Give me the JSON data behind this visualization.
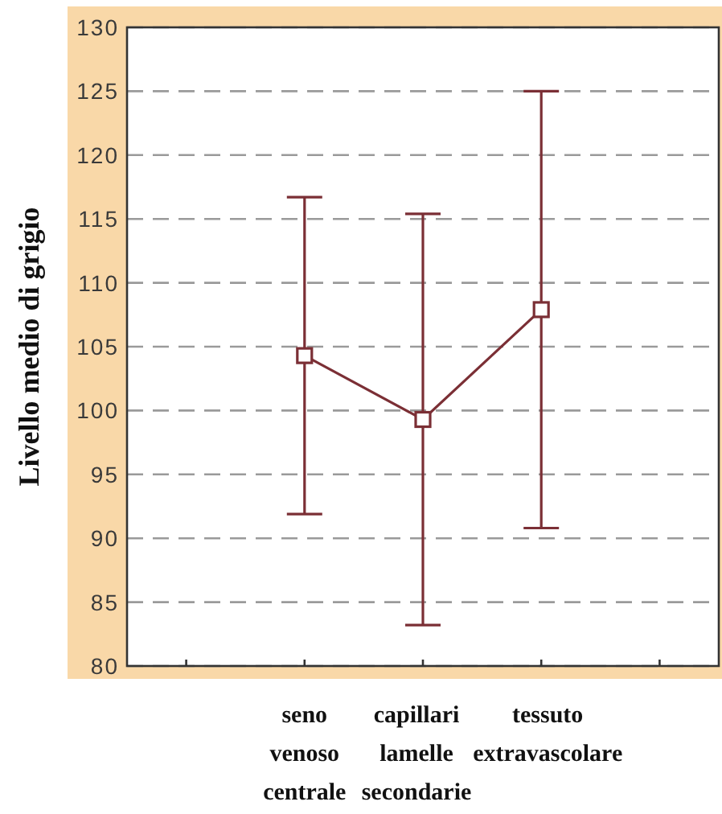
{
  "chart_data": {
    "type": "line",
    "ylabel": "Livello medio di grigio",
    "categories": [
      null,
      "seno venoso centrale",
      "capillari lamelle secondarie",
      "tessuto extravascolare",
      null
    ],
    "values": [
      null,
      104.3,
      99.3,
      107.9,
      null
    ],
    "errors": [
      null,
      12.4,
      16.1,
      17.1,
      null
    ],
    "color": "#7b2f35",
    "ylim": [
      80,
      130
    ],
    "yticks": [
      80,
      85,
      90,
      95,
      100,
      105,
      110,
      115,
      120,
      125,
      130
    ],
    "grid": "y",
    "marker": "square",
    "line_style": "solid"
  }
}
